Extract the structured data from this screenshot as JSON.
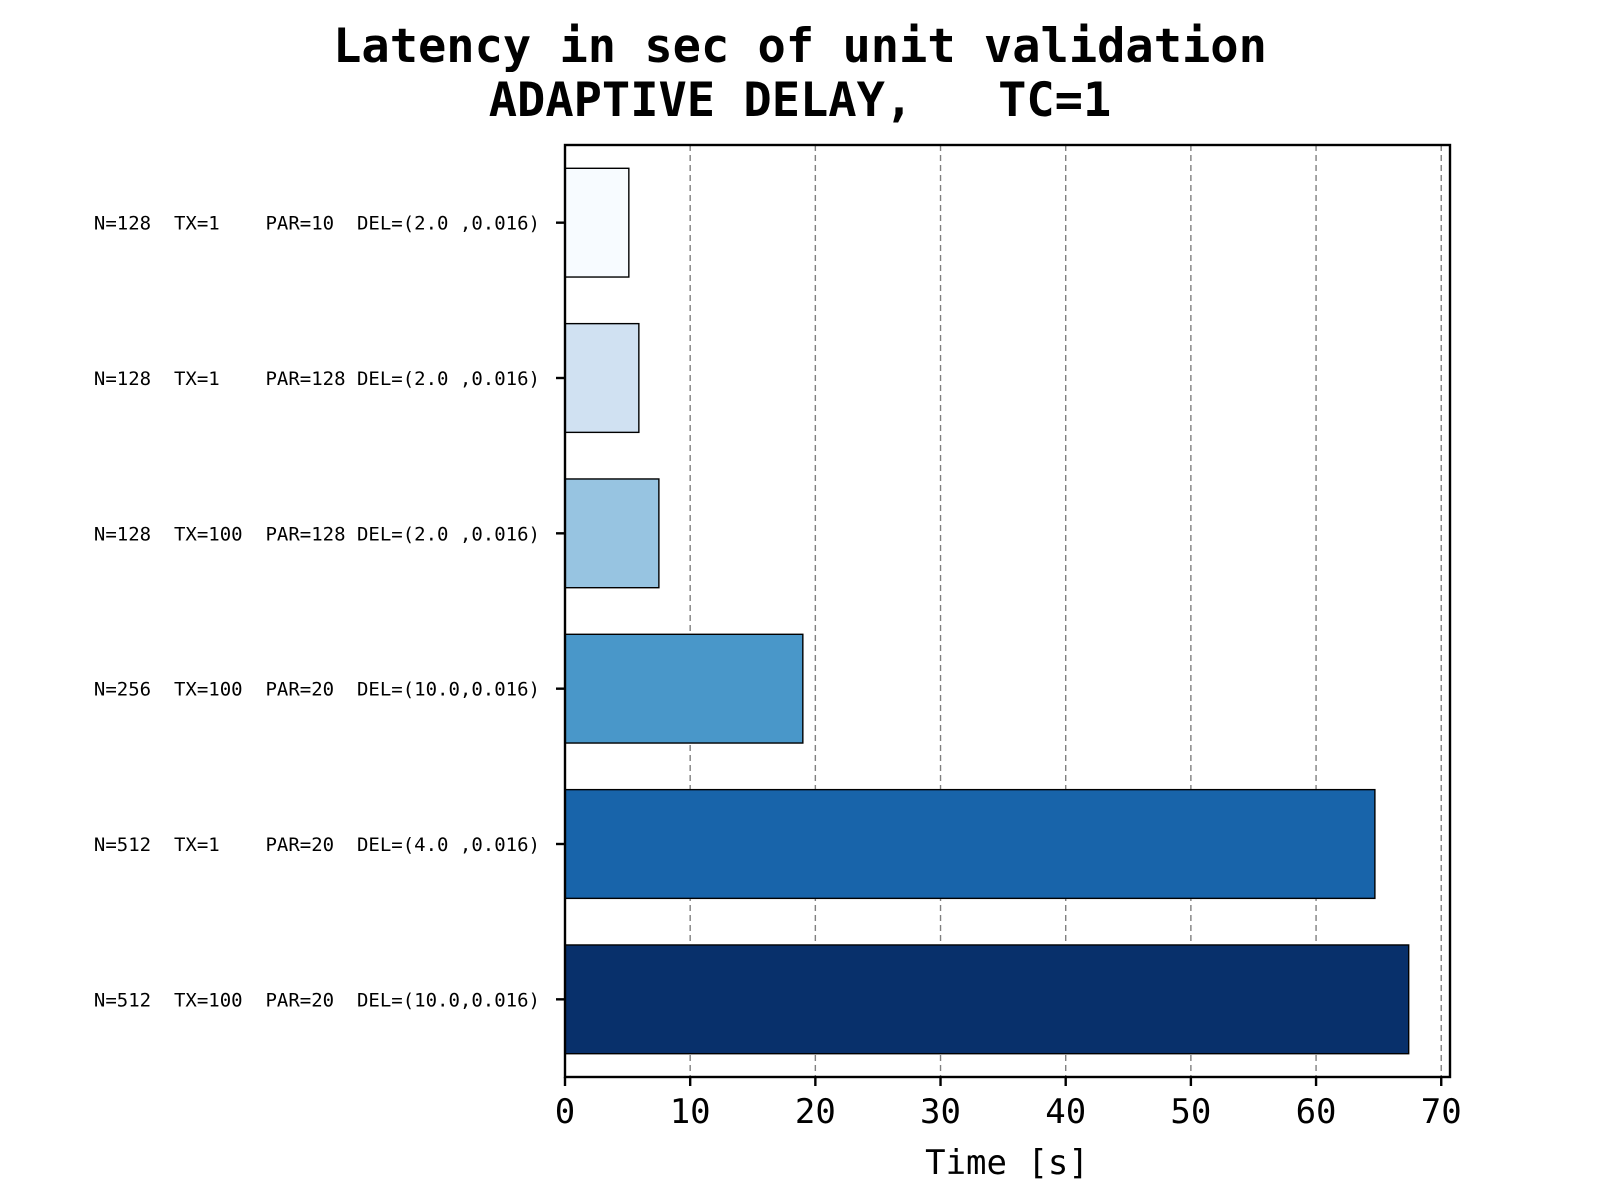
{
  "chart_data": {
    "type": "bar",
    "orientation": "horizontal",
    "title": "Latency in sec of unit validation",
    "subtitle": "ADAPTIVE DELAY,   TC=1",
    "xlabel": "Time [s]",
    "ylabel": "",
    "xlim": [
      0,
      70.7
    ],
    "xticks": [
      0,
      10,
      20,
      30,
      40,
      50,
      60,
      70
    ],
    "grid": "x-dashed",
    "categories": [
      "N=128  TX=1    PAR=10  DEL=(2.0 ,0.016)",
      "N=128  TX=1    PAR=128 DEL=(2.0 ,0.016)",
      "N=128  TX=100  PAR=128 DEL=(2.0 ,0.016)",
      "N=256  TX=100  PAR=20  DEL=(10.0,0.016)",
      "N=512  TX=1    PAR=20  DEL=(4.0 ,0.016)",
      "N=512  TX=100  PAR=20  DEL=(10.0,0.016)"
    ],
    "values": [
      5.1,
      5.9,
      7.5,
      19.0,
      64.7,
      67.4
    ],
    "colors": [
      "#f7fbff",
      "#d0e1f2",
      "#97c4e1",
      "#4997c9",
      "#1864aa",
      "#08306b"
    ]
  }
}
